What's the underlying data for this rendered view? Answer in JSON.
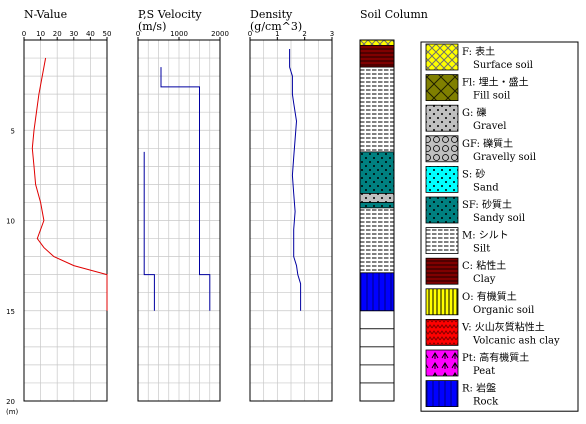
{
  "chart_data": {
    "type": "line",
    "depth_axis": {
      "ticks": [
        5,
        10,
        15,
        20
      ],
      "unit": "(m)",
      "range": [
        0,
        20
      ]
    },
    "panels": [
      {
        "id": "nvalue",
        "title": "N-Value",
        "unit": "",
        "xlim": [
          0,
          50
        ],
        "xticks": [
          "0",
          "10",
          "20",
          "30",
          "40",
          "50"
        ],
        "grid_step": 10,
        "color": "#e00000",
        "series": [
          {
            "name": "",
            "points": [
              [
                13,
                1
              ],
              [
                9,
                3
              ],
              [
                6,
                5
              ],
              [
                5,
                6
              ],
              [
                6,
                7
              ],
              [
                7,
                8
              ],
              [
                10,
                9
              ],
              [
                12,
                10
              ],
              [
                8,
                11
              ],
              [
                12,
                11.5
              ],
              [
                18,
                12
              ],
              [
                30,
                12.5
              ],
              [
                50,
                13
              ],
              [
                50,
                15
              ]
            ]
          }
        ]
      },
      {
        "id": "velocity",
        "title": "P,S Velocity",
        "unit": "(m/s)",
        "xlim": [
          0,
          2000
        ],
        "xticks": [
          "0",
          "1000",
          "2000"
        ],
        "grid_step": 250,
        "color": "#0000a0",
        "series": [
          {
            "name": "",
            "points": [
              [
                560,
                1.5
              ],
              [
                560,
                2.6
              ],
              [
                1500,
                2.6
              ],
              [
                1500,
                13.0
              ],
              [
                1750,
                13.0
              ],
              [
                1750,
                15.0
              ]
            ]
          },
          {
            "name": "",
            "points": [
              [
                150,
                6.2
              ],
              [
                150,
                13.0
              ],
              [
                400,
                13.0
              ],
              [
                400,
                15.0
              ]
            ]
          }
        ]
      },
      {
        "id": "density",
        "title": "Density",
        "unit": "(g/cm^3)",
        "xlim": [
          0,
          3
        ],
        "xticks": [
          "0",
          "1",
          "2",
          "3"
        ],
        "grid_step": 0.5,
        "color": "#0000a0",
        "series": [
          {
            "name": "",
            "points": [
              [
                1.45,
                0.5
              ],
              [
                1.45,
                1.5
              ],
              [
                1.55,
                2.0
              ],
              [
                1.55,
                3.0
              ],
              [
                1.6,
                3.5
              ],
              [
                1.7,
                4.5
              ],
              [
                1.65,
                5.5
              ],
              [
                1.6,
                6.5
              ],
              [
                1.55,
                7.5
              ],
              [
                1.6,
                8.5
              ],
              [
                1.65,
                9.5
              ],
              [
                1.6,
                10.5
              ],
              [
                1.6,
                12.0
              ],
              [
                1.7,
                12.5
              ],
              [
                1.75,
                13.0
              ],
              [
                1.85,
                13.5
              ],
              [
                1.85,
                15.0
              ]
            ]
          }
        ]
      }
    ],
    "soil_column": {
      "title": "Soil Column",
      "layers": [
        {
          "code": "F",
          "from": 0.0,
          "to": 0.3
        },
        {
          "code": "C",
          "from": 0.3,
          "to": 1.5
        },
        {
          "code": "M",
          "from": 1.5,
          "to": 6.2
        },
        {
          "code": "SF",
          "from": 6.2,
          "to": 8.5
        },
        {
          "code": "G",
          "from": 8.5,
          "to": 9.0
        },
        {
          "code": "SF",
          "from": 9.0,
          "to": 9.3
        },
        {
          "code": "M",
          "from": 9.3,
          "to": 12.9
        },
        {
          "code": "R",
          "from": 12.9,
          "to": 15.0
        }
      ]
    },
    "legend": [
      {
        "code": "F",
        "label": "F: 表土",
        "english": "Surface soil",
        "fg": "#000000",
        "bg": "#ffff00"
      },
      {
        "code": "Fl",
        "label": "Fl: 埋土・盛土",
        "english": "Fill soil",
        "fg": "#000000",
        "bg": "#808000"
      },
      {
        "code": "G",
        "label": "G: 礫",
        "english": "Gravel",
        "fg": "#000000",
        "bg": "#c0c0c0"
      },
      {
        "code": "GF",
        "label": "GF: 礫質土",
        "english": "Gravelly soil",
        "fg": "#000000",
        "bg": "#c0c0c0"
      },
      {
        "code": "S",
        "label": "S: 砂",
        "english": "Sand",
        "fg": "#000000",
        "bg": "#00ffff"
      },
      {
        "code": "SF",
        "label": "SF: 砂質土",
        "english": "Sandy soil",
        "fg": "#000000",
        "bg": "#008080"
      },
      {
        "code": "M",
        "label": "M: シルト",
        "english": "Silt",
        "fg": "#000000",
        "bg": "#ffffff"
      },
      {
        "code": "C",
        "label": "C: 粘性土",
        "english": "Clay",
        "fg": "#000000",
        "bg": "#800000"
      },
      {
        "code": "O",
        "label": "O: 有機質土",
        "english": "Organic soil",
        "fg": "#000000",
        "bg": "#ffff00"
      },
      {
        "code": "V",
        "label": "V: 火山灰質粘性土",
        "english": "Volcanic ash clay",
        "fg": "#000000",
        "bg": "#ff0000"
      },
      {
        "code": "Pt",
        "label": "Pt: 高有機質土",
        "english": "Peat",
        "fg": "#000000",
        "bg": "#ff00ff"
      },
      {
        "code": "R",
        "label": "R: 岩盤",
        "english": "Rock",
        "fg": "#000000",
        "bg": "#0000ff"
      }
    ]
  }
}
